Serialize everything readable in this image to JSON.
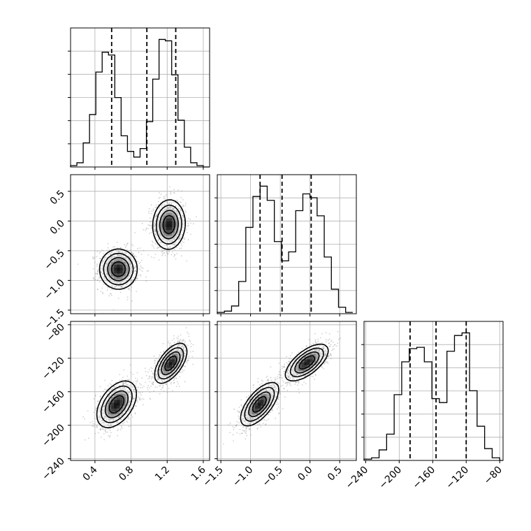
{
  "chart_data": {
    "type": "corner",
    "colors": {
      "line": "#000000",
      "grid": "#b0b0b0",
      "scatter": "#9a9a9a",
      "density_dark": "#111111"
    },
    "grid": true,
    "parameters": [
      {
        "id": "p0",
        "range": [
          0.13,
          1.67
        ],
        "ticks": [
          0.4,
          0.8,
          1.2,
          1.6
        ],
        "tick_labels": [
          "0.4",
          "0.8",
          "1.2",
          "1.6"
        ]
      },
      {
        "id": "p1",
        "range": [
          -1.56,
          0.78
        ],
        "ticks": [
          -1.5,
          -1.0,
          -0.5,
          0.0,
          0.5
        ],
        "tick_labels": [
          "−1.5",
          "−1.0",
          "−0.5",
          "0.0",
          "0.5"
        ]
      },
      {
        "id": "p2",
        "range": [
          -242,
          -76
        ],
        "ticks": [
          -240,
          -200,
          -160,
          -120,
          -80
        ],
        "tick_labels": [
          "−240",
          "−200",
          "−160",
          "−120",
          "−80"
        ]
      }
    ],
    "histograms": [
      {
        "param": "p0",
        "edges": [
          0.13,
          0.2,
          0.27,
          0.34,
          0.41,
          0.48,
          0.55,
          0.62,
          0.69,
          0.76,
          0.83,
          0.9,
          0.97,
          1.04,
          1.11,
          1.18,
          1.25,
          1.32,
          1.39,
          1.46,
          1.53,
          1.6,
          1.67
        ],
        "counts": [
          1,
          3,
          17,
          37,
          67,
          81,
          79,
          49,
          22,
          11,
          7,
          13,
          32,
          62,
          90,
          89,
          65,
          33,
          14,
          3,
          1,
          0
        ],
        "quantiles": [
          0.585,
          0.975,
          1.295
        ]
      },
      {
        "param": "p1",
        "edges": [
          -1.56,
          -1.44,
          -1.32,
          -1.2,
          -1.08,
          -0.96,
          -0.84,
          -0.72,
          -0.6,
          -0.48,
          -0.36,
          -0.24,
          -0.12,
          0.0,
          0.12,
          0.24,
          0.36,
          0.48,
          0.6,
          0.72
        ],
        "counts": [
          1,
          2,
          6,
          25,
          67,
          91,
          99,
          88,
          56,
          41,
          48,
          80,
          93,
          90,
          76,
          44,
          19,
          5,
          1
        ],
        "quantiles": [
          -0.84,
          -0.47,
          0.02
        ]
      },
      {
        "param": "p2",
        "edges": [
          -242,
          -233,
          -224,
          -215,
          -206,
          -197,
          -188,
          -179,
          -170,
          -161,
          -152,
          -143,
          -134,
          -125,
          -116,
          -107,
          -98,
          -89,
          -80,
          -76
        ],
        "counts": [
          1,
          2,
          8,
          20,
          50,
          75,
          85,
          86,
          75,
          47,
          44,
          83,
          95,
          97,
          53,
          26,
          9,
          2,
          0
        ],
        "quantiles": [
          -187,
          -156,
          -120
        ]
      }
    ],
    "pairs": [
      {
        "x": "p0",
        "y": "p1",
        "modes": [
          {
            "mean": [
              0.66,
              -0.81
            ],
            "sd": [
              0.105,
              0.17
            ],
            "rho": 0.0,
            "weight": 0.5
          },
          {
            "mean": [
              1.22,
              -0.06
            ],
            "sd": [
              0.09,
              0.21
            ],
            "rho": 0.05,
            "weight": 0.5
          }
        ]
      },
      {
        "x": "p0",
        "y": "p2",
        "modes": [
          {
            "mean": [
              0.64,
              -175
            ],
            "sd": [
              0.11,
              14
            ],
            "rho": 0.45,
            "weight": 0.5
          },
          {
            "mean": [
              1.24,
              -126
            ],
            "sd": [
              0.09,
              12
            ],
            "rho": 0.6,
            "weight": 0.5
          }
        ]
      },
      {
        "x": "p1",
        "y": "p2",
        "modes": [
          {
            "mean": [
              -0.85,
              -175
            ],
            "sd": [
              0.16,
              13
            ],
            "rho": 0.65,
            "weight": 0.5
          },
          {
            "mean": [
              -0.05,
              -125
            ],
            "sd": [
              0.18,
              11
            ],
            "rho": 0.65,
            "weight": 0.5
          }
        ]
      }
    ]
  }
}
